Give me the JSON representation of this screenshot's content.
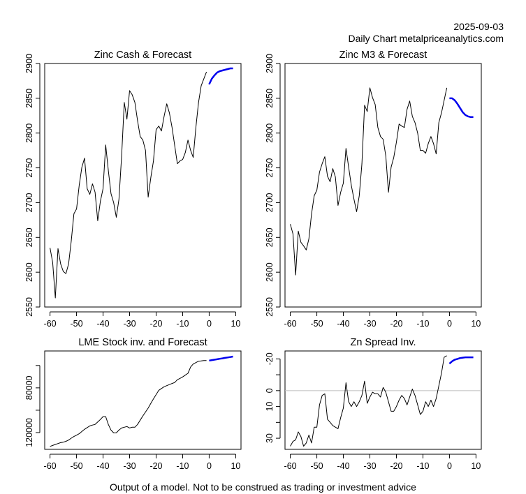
{
  "header": {
    "date": "2025-09-03",
    "subtitle": "Daily Chart metalpriceanalytics.com"
  },
  "footer": {
    "disclaimer": "Output of a model. Not to be construed as trading or investment advice"
  },
  "colors": {
    "history": "#000000",
    "forecast": "#0000ee",
    "zero_line": "#bebebe",
    "axis": "#000000"
  },
  "chart_data": [
    {
      "id": "zinc-cash",
      "type": "line",
      "title": "Zinc Cash & Forecast",
      "xlabel": "",
      "ylabel": "",
      "xlim": [
        -62,
        12
      ],
      "ylim": [
        2550,
        2900
      ],
      "y_inverted": false,
      "xticks": [
        -60,
        -50,
        -40,
        -30,
        -20,
        -10,
        0,
        10
      ],
      "yticks": [
        2550,
        2600,
        2650,
        2700,
        2750,
        2800,
        2850,
        2900
      ],
      "ytick_labels": [
        "2550",
        "2600",
        "2650",
        "2700",
        "2750",
        "2800",
        "2850",
        "2900"
      ],
      "grid": false,
      "series": [
        {
          "name": "history",
          "x_start": -60,
          "values": [
            2635,
            2614,
            2563,
            2634,
            2612,
            2601,
            2598,
            2612,
            2645,
            2684,
            2691,
            2725,
            2751,
            2764,
            2720,
            2712,
            2727,
            2715,
            2674,
            2702,
            2720,
            2783,
            2746,
            2713,
            2700,
            2679,
            2705,
            2767,
            2844,
            2820,
            2861,
            2855,
            2844,
            2818,
            2795,
            2790,
            2775,
            2708,
            2736,
            2760,
            2805,
            2810,
            2803,
            2824,
            2842,
            2829,
            2808,
            2782,
            2756,
            2760,
            2762,
            2772,
            2790,
            2775,
            2765,
            2808,
            2844,
            2868,
            2878,
            2888
          ]
        },
        {
          "name": "forecast",
          "x_start": 0,
          "values": [
            2870,
            2878,
            2883,
            2887,
            2889,
            2890,
            2891,
            2892,
            2893,
            2893
          ]
        }
      ]
    },
    {
      "id": "zinc-m3",
      "type": "line",
      "title": "Zinc M3 & Forecast",
      "xlabel": "",
      "ylabel": "",
      "xlim": [
        -62,
        12
      ],
      "ylim": [
        2550,
        2900
      ],
      "y_inverted": false,
      "xticks": [
        -60,
        -50,
        -40,
        -30,
        -20,
        -10,
        0,
        10
      ],
      "yticks": [
        2550,
        2600,
        2650,
        2700,
        2750,
        2800,
        2850,
        2900
      ],
      "ytick_labels": [
        "2550",
        "2600",
        "2650",
        "2700",
        "2750",
        "2800",
        "2850",
        "2900"
      ],
      "grid": false,
      "series": [
        {
          "name": "history",
          "x_start": -60,
          "values": [
            2669,
            2655,
            2596,
            2659,
            2643,
            2638,
            2632,
            2648,
            2684,
            2710,
            2718,
            2744,
            2756,
            2766,
            2738,
            2730,
            2749,
            2737,
            2696,
            2715,
            2728,
            2778,
            2751,
            2725,
            2705,
            2687,
            2710,
            2756,
            2840,
            2831,
            2865,
            2851,
            2841,
            2808,
            2795,
            2791,
            2767,
            2715,
            2751,
            2765,
            2787,
            2813,
            2810,
            2808,
            2834,
            2846,
            2824,
            2815,
            2800,
            2775,
            2775,
            2771,
            2785,
            2795,
            2785,
            2770,
            2815,
            2829,
            2847,
            2865
          ]
        },
        {
          "name": "forecast",
          "x_start": 0,
          "values": [
            2850,
            2850,
            2847,
            2842,
            2836,
            2830,
            2826,
            2824,
            2823,
            2823
          ]
        }
      ]
    },
    {
      "id": "lme-stock",
      "type": "line",
      "title": "LME Stock inv. and Forecast",
      "xlabel": "",
      "ylabel": "",
      "xlim": [
        -62,
        12
      ],
      "ylim": [
        135000,
        47000
      ],
      "y_inverted": true,
      "xticks": [
        -60,
        -50,
        -40,
        -30,
        -20,
        -10,
        0,
        10
      ],
      "yticks": [
        60000,
        80000,
        100000,
        120000
      ],
      "ytick_labels": [
        "",
        "80000",
        "",
        "120000"
      ],
      "grid": false,
      "series": [
        {
          "name": "history",
          "x_start": -60,
          "values": [
            132400,
            131500,
            130600,
            129800,
            129000,
            128600,
            127800,
            126700,
            125000,
            123500,
            122300,
            121000,
            119000,
            117100,
            115500,
            114000,
            113300,
            112700,
            110500,
            108300,
            105700,
            105700,
            112700,
            117800,
            120300,
            120300,
            117800,
            115900,
            115200,
            114600,
            115900,
            115200,
            115200,
            112700,
            108900,
            105100,
            101600,
            98100,
            93900,
            89800,
            86000,
            82200,
            80600,
            79000,
            78000,
            77100,
            76100,
            75200,
            72700,
            71500,
            70200,
            68600,
            67000,
            61300,
            58700,
            57400,
            56200,
            55900,
            55600,
            55600
          ]
        },
        {
          "name": "forecast",
          "x_start": 0,
          "values": [
            55600,
            55200,
            54800,
            54400,
            54000,
            53600,
            53200,
            52800,
            52400,
            52000
          ]
        }
      ]
    },
    {
      "id": "zn-spread",
      "type": "line",
      "title": "Zn Spread Inv.",
      "xlabel": "",
      "ylabel": "",
      "xlim": [
        -62,
        12
      ],
      "ylim": [
        37,
        -25
      ],
      "y_inverted": true,
      "xticks": [
        -60,
        -50,
        -40,
        -30,
        -20,
        -10,
        0,
        10
      ],
      "yticks": [
        -20,
        -10,
        0,
        10,
        20,
        30
      ],
      "ytick_labels": [
        "-20",
        "",
        "0",
        "10",
        "",
        "30"
      ],
      "reference_line": 0,
      "grid": false,
      "series": [
        {
          "name": "history",
          "x_start": -60,
          "values": [
            35,
            32,
            31,
            26,
            29,
            35,
            33,
            28,
            33,
            23,
            23,
            9,
            3,
            2,
            18,
            20,
            22,
            23,
            24,
            17,
            11,
            -5,
            7,
            10,
            7,
            10,
            7,
            3,
            -6,
            8,
            4,
            1,
            2,
            2,
            4,
            -2,
            1,
            7,
            13,
            13,
            10,
            6,
            3,
            5,
            9,
            4,
            -1,
            3,
            9,
            15,
            13,
            7,
            10,
            6,
            10,
            5,
            -3,
            -11,
            -21,
            -22
          ]
        },
        {
          "name": "forecast",
          "x_start": 0,
          "values": [
            -17,
            -18.5,
            -19.5,
            -20,
            -20.5,
            -20.8,
            -21,
            -21,
            -21,
            -21
          ]
        }
      ]
    }
  ]
}
